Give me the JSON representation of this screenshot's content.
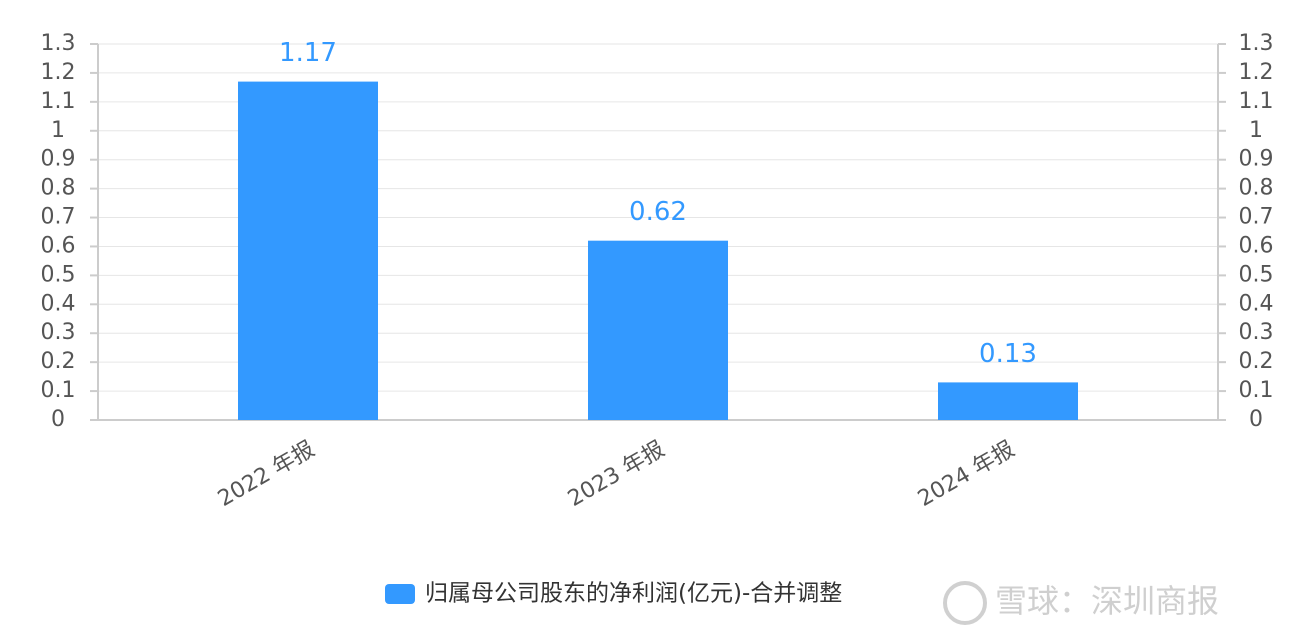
{
  "chart_data": {
    "type": "bar",
    "categories": [
      "2022 年报",
      "2023 年报",
      "2024 年报"
    ],
    "series": [
      {
        "name": "归属母公司股东的净利润(亿元)-合并调整",
        "color": "#3399ff",
        "values": [
          1.17,
          0.62,
          0.13
        ]
      }
    ],
    "ylim": [
      0,
      1.3
    ],
    "yticks": [
      0,
      0.1,
      0.2,
      0.3,
      0.4,
      0.5,
      0.6,
      0.7,
      0.8,
      0.9,
      1,
      1.1,
      1.2,
      1.3
    ],
    "y2lim": [
      0,
      1.3
    ],
    "y2ticks": [
      0,
      0.1,
      0.2,
      0.3,
      0.4,
      0.5,
      0.6,
      0.7,
      0.8,
      0.9,
      1,
      1.1,
      1.2,
      1.3
    ],
    "grid": true,
    "legend": "bottom",
    "watermark": "雪球：深圳商报"
  }
}
